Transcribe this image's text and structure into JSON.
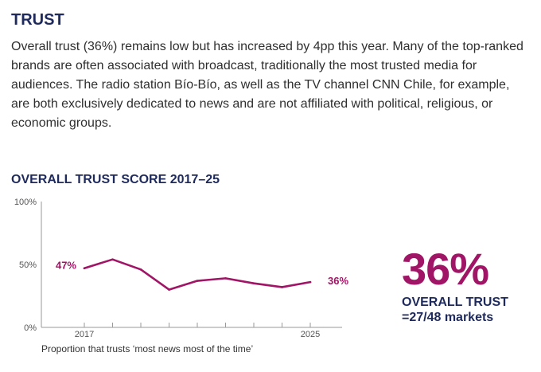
{
  "section": {
    "title": "TRUST",
    "body": "Overall trust (36%) remains low but has increased by 4pp this year. Many of the top-ranked brands are often associated with broadcast, traditionally the most trusted media for audiences. The radio station Bío-Bío, as well as the TV channel CNN Chile, for example, are both exclusively dedicated to news and are not affiliated with political, religious, or economic groups."
  },
  "callout": {
    "value": "36%",
    "label": "OVERALL TRUST",
    "sub": "=27/48 markets"
  },
  "colors": {
    "line": "#a01565",
    "title": "#1f2a5c",
    "axis": "#9a9a9a"
  },
  "chart_data": {
    "type": "line",
    "title": "OVERALL TRUST SCORE 2017–25",
    "caption": "Proportion that trusts ‘most news most of the time’",
    "x": [
      2017,
      2018,
      2019,
      2020,
      2021,
      2022,
      2023,
      2024,
      2025
    ],
    "x_tick_labels": {
      "2017": "2017",
      "2025": "2025"
    },
    "values": [
      47,
      54,
      46,
      30,
      37,
      39,
      35,
      32,
      36
    ],
    "data_labels": {
      "2017": "47%",
      "2025": "36%"
    },
    "yticks": [
      "0%",
      "50%",
      "100%"
    ],
    "ylim": [
      0,
      100
    ],
    "grid": false
  }
}
